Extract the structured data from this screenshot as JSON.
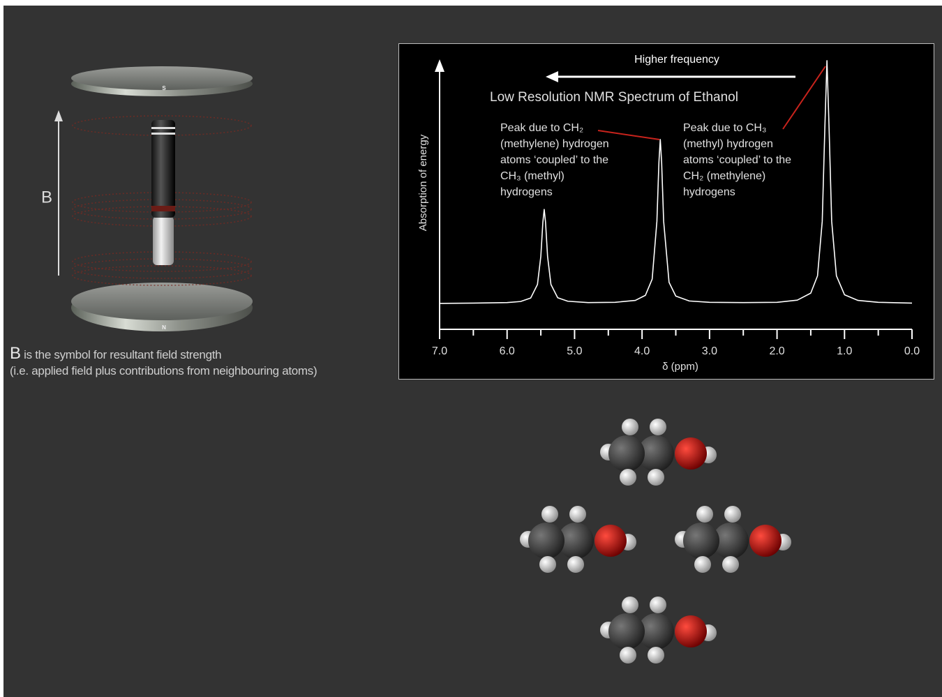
{
  "magnet": {
    "field_label": "B",
    "pole_top": "S",
    "pole_bottom": "N"
  },
  "caption": {
    "symbol": "B",
    "lines": [
      "is the symbol for resultant field strength",
      "(i.e. applied field plus contributions from neighbouring atoms)"
    ]
  },
  "chart_data": {
    "type": "line",
    "title": "Low Resolution NMR Spectrum of Ethanol",
    "subtitle": "Higher frequency",
    "xlabel": "δ  (ppm)",
    "ylabel": "Absorption of energy",
    "color": "#ffffff",
    "xlim": [
      7.0,
      0.0
    ],
    "ylim": [
      0,
      100
    ],
    "xticks": [
      {
        "value": 7,
        "label": "7.0"
      },
      {
        "value": 6,
        "label": "6.0"
      },
      {
        "value": 5,
        "label": "5.0"
      },
      {
        "value": 4,
        "label": "4.0"
      },
      {
        "value": 3,
        "label": "3.0"
      },
      {
        "value": 2,
        "label": "2.0"
      },
      {
        "value": 1,
        "label": "1.0"
      },
      {
        "value": 0,
        "label": "0.0"
      }
    ],
    "xminorticks": [
      6.5,
      5.5,
      4.5,
      3.5,
      2.5,
      1.5,
      0.5
    ],
    "x": [
      7.0,
      6.5,
      6.0,
      5.8,
      5.65,
      5.55,
      5.5,
      5.47,
      5.45,
      5.43,
      5.4,
      5.35,
      5.25,
      5.1,
      4.8,
      4.4,
      4.1,
      3.95,
      3.85,
      3.78,
      3.75,
      3.73,
      3.71,
      3.68,
      3.6,
      3.5,
      3.3,
      3.0,
      2.5,
      2.0,
      1.7,
      1.5,
      1.4,
      1.33,
      1.29,
      1.26,
      1.23,
      1.19,
      1.12,
      1.0,
      0.8,
      0.5,
      0.0
    ],
    "values": [
      9.6,
      9.7,
      9.9,
      10.3,
      11.6,
      16.6,
      27.0,
      39.6,
      44.4,
      39.6,
      27.0,
      16.6,
      11.7,
      10.4,
      9.9,
      10.0,
      10.7,
      12.6,
      18.6,
      40.0,
      61.9,
      70.3,
      61.9,
      40.0,
      17.4,
      12.3,
      10.5,
      10.0,
      9.9,
      10.0,
      10.8,
      13.4,
      19.8,
      40.0,
      75.7,
      99.5,
      75.7,
      40.0,
      19.8,
      12.8,
      10.7,
      10.0,
      9.7
    ],
    "annotations": [
      {
        "lines": [
          "Peak due to CH₂",
          "(methylene) hydrogen",
          "atoms ‘coupled’ to the",
          "CH₃ (methyl)",
          "hydrogens"
        ]
      },
      {
        "lines": [
          "Peak due to CH₃",
          "(methyl) hydrogen",
          "atoms ‘coupled’ to the",
          "CH₂ (methylene)",
          "hydrogens"
        ]
      }
    ]
  }
}
